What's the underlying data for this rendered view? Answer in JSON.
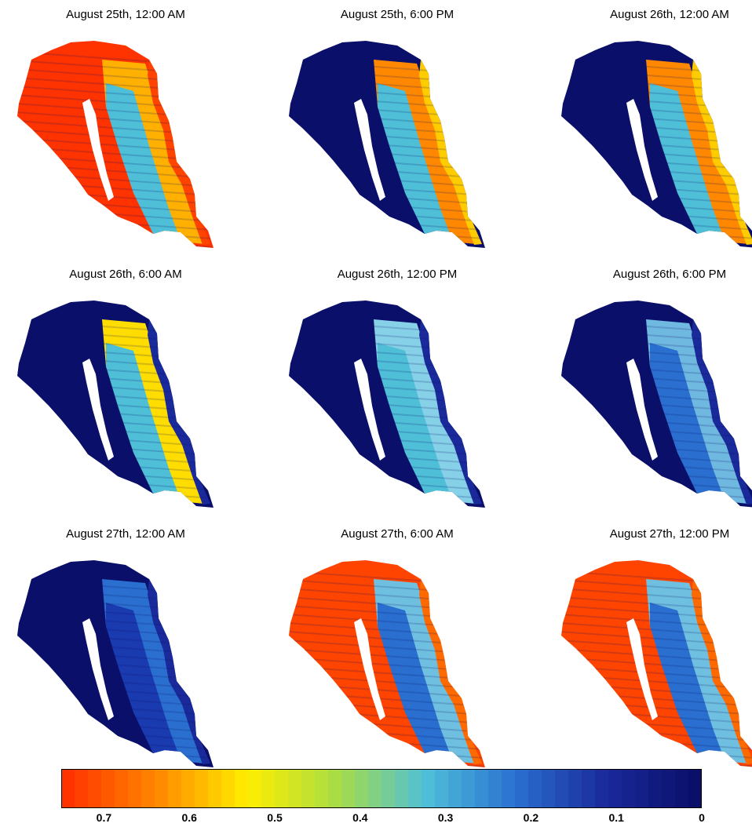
{
  "panels": [
    {
      "title": "August 25th, 12:00 AM",
      "pattern": "high"
    },
    {
      "title": "August 25th, 6:00 PM",
      "pattern": "edge-high"
    },
    {
      "title": "August 26th, 12:00 AM",
      "pattern": "edge-high"
    },
    {
      "title": "August 26th, 6:00 AM",
      "pattern": "mid"
    },
    {
      "title": "August 26th, 12:00 PM",
      "pattern": "low-mid"
    },
    {
      "title": "August 26th, 6:00 PM",
      "pattern": "low"
    },
    {
      "title": "August 27th, 12:00 AM",
      "pattern": "lowest"
    },
    {
      "title": "August 27th, 6:00 AM",
      "pattern": "rewet"
    },
    {
      "title": "August 27th, 12:00 PM",
      "pattern": "rewet"
    }
  ],
  "colorbar": {
    "ticks": [
      "0.7",
      "0.6",
      "0.5",
      "0.4",
      "0.3",
      "0.2",
      "0.1",
      "0"
    ],
    "min": 0,
    "max": 0.75,
    "colors": [
      "#ff3300",
      "#ff8800",
      "#ffee00",
      "#a8dd44",
      "#4fbfd8",
      "#2a6fd0",
      "#1a2a9a",
      "#0a0f6a"
    ]
  }
}
